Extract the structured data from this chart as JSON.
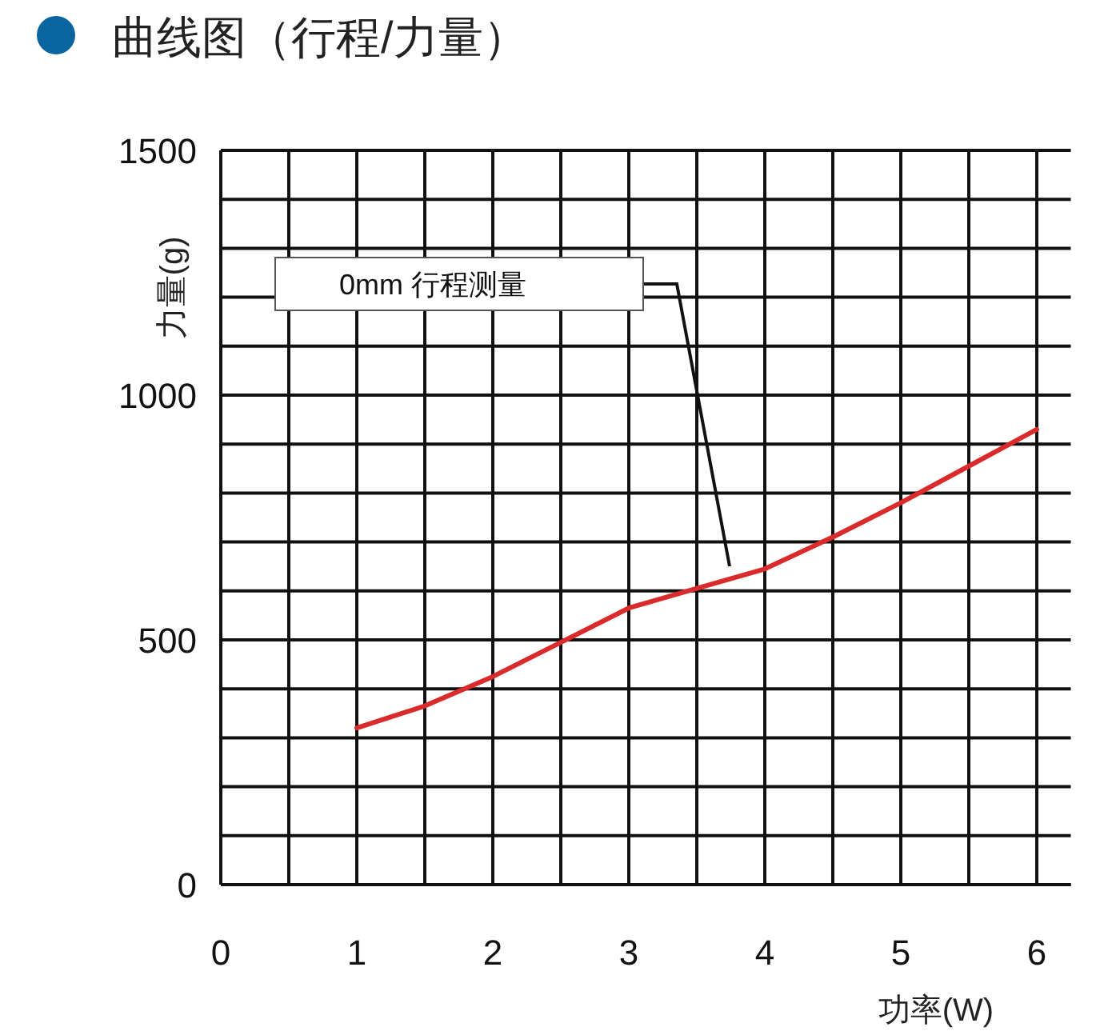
{
  "chart_data": {
    "type": "line",
    "title": "曲线图（行程/力量）",
    "xlabel": "功率(W)",
    "ylabel": "力量(g)",
    "x": [
      1,
      1.5,
      2,
      2.5,
      3,
      3.5,
      4,
      4.5,
      5,
      5.5,
      6
    ],
    "series": [
      {
        "color": "#d92b2b",
        "values": [
          320,
          365,
          425,
          495,
          565,
          605,
          645,
          710,
          780,
          855,
          930
        ]
      }
    ],
    "xlim": [
      0,
      6.25
    ],
    "xticks": [
      0,
      {
        "value": 0.5,
        "label": null
      },
      1,
      {
        "value": 1.5,
        "label": null
      },
      2,
      {
        "value": 2.5,
        "label": null
      },
      3,
      {
        "value": 3.5,
        "label": null
      },
      4,
      {
        "value": 4.5,
        "label": null
      },
      5,
      {
        "value": 5.5,
        "label": null
      },
      6
    ],
    "ylim": [
      0,
      1500
    ],
    "yticks": [
      0,
      {
        "value": 100,
        "label": null
      },
      {
        "value": 200,
        "label": null
      },
      {
        "value": 300,
        "label": null
      },
      {
        "value": 400,
        "label": null
      },
      500,
      {
        "value": 600,
        "label": null
      },
      {
        "value": 700,
        "label": null
      },
      {
        "value": 800,
        "label": null
      },
      {
        "value": 900,
        "label": null
      },
      1000,
      {
        "value": 1100,
        "label": null
      },
      {
        "value": 1200,
        "label": null
      },
      {
        "value": 1300,
        "label": null
      },
      {
        "value": 1400,
        "label": null
      },
      1500
    ],
    "grid": true,
    "marker": "none",
    "line_style": "solid",
    "annotations": [
      "0mm 行程测量"
    ]
  }
}
